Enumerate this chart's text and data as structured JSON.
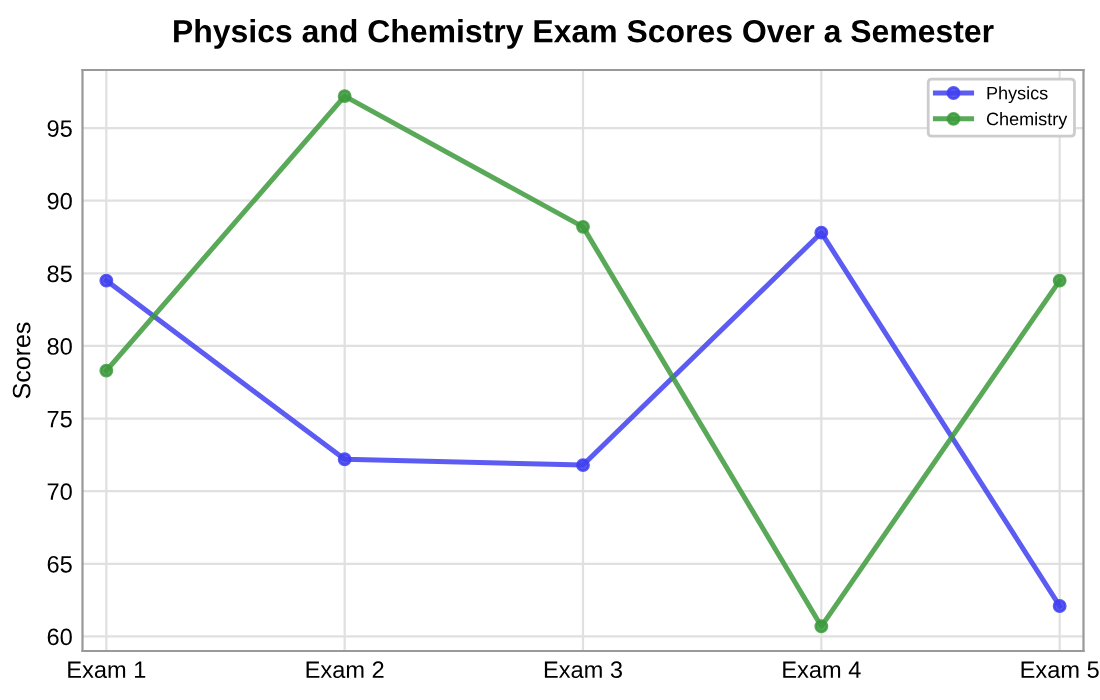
{
  "chart_data": {
    "type": "line",
    "title": "Physics and Chemistry Exam Scores Over a Semester",
    "ylabel": "Scores",
    "categories": [
      "Exam 1",
      "Exam 2",
      "Exam 3",
      "Exam 4",
      "Exam 5"
    ],
    "series": [
      {
        "name": "Physics",
        "color": "#4040f0",
        "values": [
          84.5,
          72.2,
          71.8,
          87.8,
          62.1
        ]
      },
      {
        "name": "Chemistry",
        "color": "#3c9a3c",
        "values": [
          78.3,
          97.2,
          88.2,
          60.7,
          84.5
        ]
      }
    ],
    "ylim": [
      59,
      99
    ],
    "yticks": [
      60,
      65,
      70,
      75,
      80,
      85,
      90,
      95
    ],
    "grid": true,
    "legend": "top right",
    "marker": "circle",
    "line_style": "solid"
  }
}
